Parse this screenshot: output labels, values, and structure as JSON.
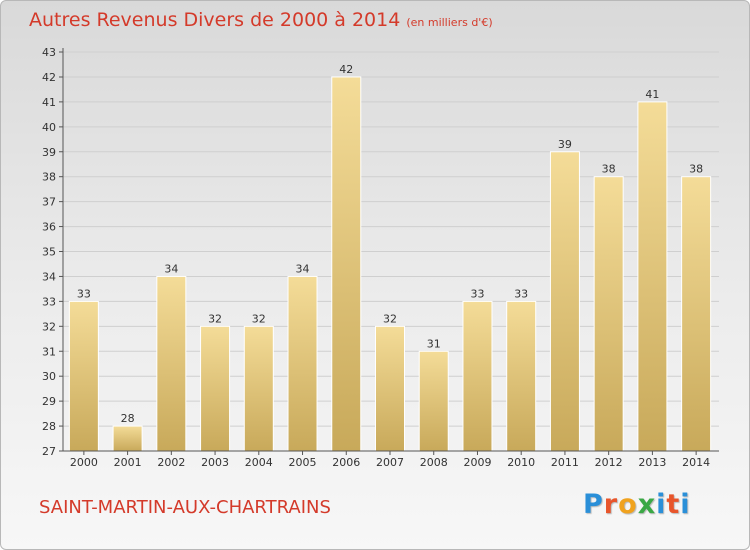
{
  "title": "Autres Revenus Divers de 2000 à 2014",
  "subtitle": "(en milliers d'€)",
  "commune": "SAINT-MARTIN-AUX-CHARTRAINS",
  "logo_text": "Proxiti",
  "colors": {
    "title": "#d43a2a",
    "bar_light": "#f4dc98",
    "bar_dark": "#c8a95a",
    "grid": "#cfcfcf",
    "axis": "#555555",
    "logo": [
      "#2a8fd8",
      "#e8552b",
      "#f0a21e",
      "#3aa845",
      "#2a8fd8",
      "#e8552b",
      "#2a8fd8"
    ]
  },
  "chart_data": {
    "type": "bar",
    "categories": [
      "2000",
      "2001",
      "2002",
      "2003",
      "2004",
      "2005",
      "2006",
      "2007",
      "2008",
      "2009",
      "2010",
      "2011",
      "2012",
      "2013",
      "2014"
    ],
    "values": [
      33,
      28,
      34,
      32,
      32,
      34,
      42,
      32,
      31,
      33,
      33,
      39,
      38,
      41,
      38
    ],
    "ylim": [
      27,
      43
    ],
    "yticks": [
      27,
      28,
      29,
      30,
      31,
      32,
      33,
      34,
      35,
      36,
      37,
      38,
      39,
      40,
      41,
      42,
      43
    ],
    "grid": true,
    "data_labels": true
  }
}
